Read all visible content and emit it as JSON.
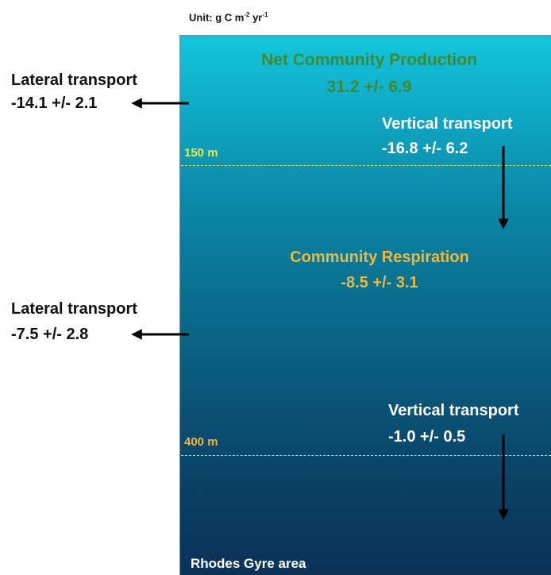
{
  "unit": {
    "prefix": "Unit: g C m",
    "exp1": "-2",
    "mid": " yr",
    "exp2": "-1"
  },
  "net_community_production": {
    "label": "Net Community Production",
    "value": "31.2  +/- 6.9"
  },
  "community_respiration": {
    "label": "Community Respiration",
    "value": "-8.5  +/- 3.1"
  },
  "lateral_upper": {
    "label": "Lateral transport",
    "value": "-14.1 +/- 2.1"
  },
  "lateral_lower": {
    "label": "Lateral transport",
    "value": "-7.5 +/- 2.8"
  },
  "vertical_upper": {
    "label": "Vertical transport",
    "value": "-16.8 +/- 6.2"
  },
  "vertical_lower": {
    "label": "Vertical transport",
    "value": "-1.0 +/- 0.5"
  },
  "depth_marks": [
    {
      "label": "150 m",
      "color": "#e8e84a"
    },
    {
      "label": "400 m",
      "color": "#f0b63a"
    }
  ],
  "area_label": "Rhodes Gyre area",
  "colors": {
    "ncp_text": "#3f8a2a",
    "respiration_text": "#f0b63a",
    "water_top": "#12c5dc",
    "water_bottom": "#0a3257"
  }
}
